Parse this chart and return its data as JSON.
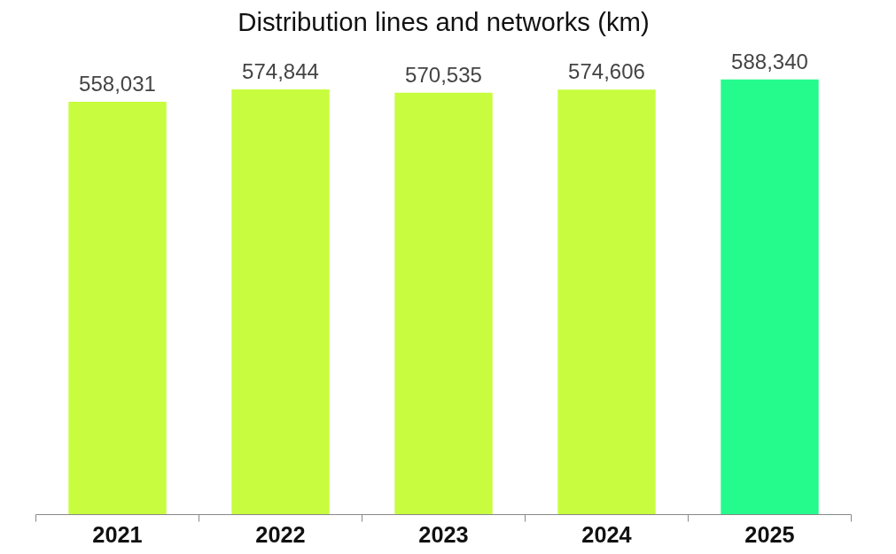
{
  "chart_data": {
    "type": "bar",
    "title": "Distribution lines and networks (km)",
    "categories": [
      "2021",
      "2022",
      "2023",
      "2024",
      "2025"
    ],
    "values": [
      558031,
      574844,
      570535,
      574606,
      588340
    ],
    "value_labels": [
      "558,031",
      "574,844",
      "570,535",
      "574,606",
      "588,340"
    ],
    "colors": [
      "#c8fd3f",
      "#c8fd3f",
      "#c8fd3f",
      "#c8fd3f",
      "#24fb8c"
    ],
    "tick_labels": "x"
  }
}
